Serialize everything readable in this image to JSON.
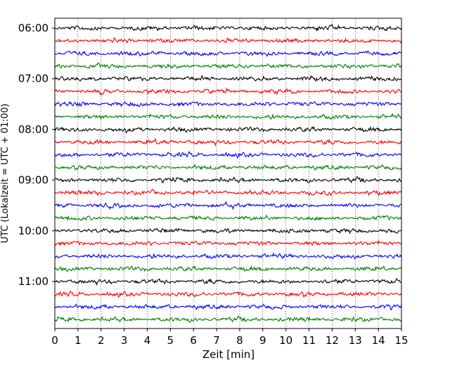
{
  "chart_data": {
    "type": "line",
    "title": "",
    "xlabel": "Zeit  [min]",
    "ylabel": "UTC (Lokalzeit = UTC + 01:00)",
    "xlim": [
      0,
      15
    ],
    "x_ticks": [
      "0",
      "1",
      "2",
      "3",
      "4",
      "5",
      "6",
      "7",
      "8",
      "9",
      "10",
      "11",
      "12",
      "13",
      "14",
      "15"
    ],
    "y_ticks": [
      "06:00",
      "07:00",
      "08:00",
      "09:00",
      "10:00",
      "11:00"
    ],
    "traces_per_hour": 4,
    "trace_minutes": 15,
    "trace_start_times": [
      "06:00",
      "06:15",
      "06:30",
      "06:45",
      "07:00",
      "07:15",
      "07:30",
      "07:45",
      "08:00",
      "08:15",
      "08:30",
      "08:45",
      "09:00",
      "09:15",
      "09:30",
      "09:45",
      "10:00",
      "10:15",
      "10:30",
      "10:45",
      "11:00",
      "11:15",
      "11:30",
      "11:45"
    ],
    "trace_colors": [
      "#000000",
      "#ff0000",
      "#0000ff",
      "#008000"
    ],
    "grid": "vertical dotted at each minute",
    "legend": "none",
    "noise": "seismic background noise, no distinct event"
  }
}
